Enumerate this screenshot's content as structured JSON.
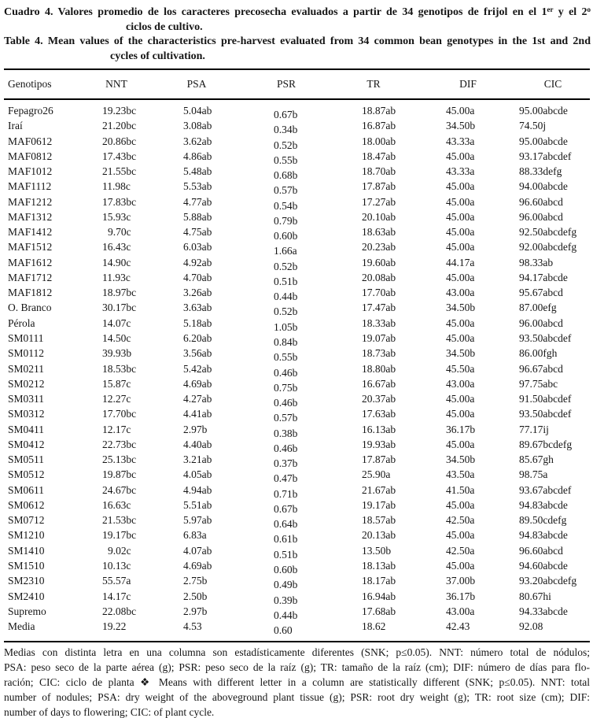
{
  "captions": {
    "es": {
      "label": "Cuadro 4.",
      "line1": "Valores promedio de los caracteres precosecha evaluados a partir de 34 genotipos de frijol en el 1",
      "sup1": "er",
      "mid1": " y el 2",
      "sup2": "o",
      "line2": "ciclos de cultivo."
    },
    "en": {
      "label": "Table 4.",
      "line1": "Mean values of the characteristics pre-harvest evaluated from 34 common bean genotypes in the 1st and 2nd",
      "line2": "cycles of cultivation."
    }
  },
  "table": {
    "columns": [
      "Genotipos",
      "NNT",
      "PSA",
      "PSR",
      "TR",
      "DIF",
      "CIC"
    ],
    "rows": [
      [
        "Fepagro26",
        "19.23bc",
        "5.04ab",
        "0.67b",
        "18.87ab",
        "45.00a",
        "95.00abcde"
      ],
      [
        "Iraí",
        "21.20bc",
        "3.08ab",
        "0.34b",
        "16.87ab",
        "34.50b",
        "74.50j"
      ],
      [
        "MAF0612",
        "20.86bc",
        "3.62ab",
        "0.52b",
        "18.00ab",
        "43.33a",
        "95.00abcde"
      ],
      [
        "MAF0812",
        "17.43bc",
        "4.86ab",
        "0.55b",
        "18.47ab",
        "45.00a",
        "93.17abcdef"
      ],
      [
        "MAF1012",
        "21.55bc",
        "5.48ab",
        "0.68b",
        "18.70ab",
        "43.33a",
        "88.33defg"
      ],
      [
        "MAF1112",
        "11.98c",
        "5.53ab",
        "0.57b",
        "17.87ab",
        "45.00a",
        "94.00abcde"
      ],
      [
        "MAF1212",
        "17.83bc",
        "4.77ab",
        "0.54b",
        "17.27ab",
        "45.00a",
        "96.60abcd"
      ],
      [
        "MAF1312",
        "15.93c",
        "5.88ab",
        "0.79b",
        "20.10ab",
        "45.00a",
        "96.00abcd"
      ],
      [
        "MAF1412",
        "9.70c",
        "4.75ab",
        "0.60b",
        "18.63ab",
        "45.00a",
        "92.50abcdefg"
      ],
      [
        "MAF1512",
        "16.43c",
        "6.03ab",
        "1.66a",
        "20.23ab",
        "45.00a",
        "92.00abcdefg"
      ],
      [
        "MAF1612",
        "14.90c",
        "4.92ab",
        "0.52b",
        "19.60ab",
        "44.17a",
        "98.33ab"
      ],
      [
        "MAF1712",
        "11.93c",
        "4.70ab",
        "0.51b",
        "20.08ab",
        "45.00a",
        "94.17abcde"
      ],
      [
        "MAF1812",
        "18.97bc",
        "3.26ab",
        "0.44b",
        "17.70ab",
        "43.00a",
        "95.67abcd"
      ],
      [
        "O. Branco",
        "30.17bc",
        "3.63ab",
        "0.52b",
        "17.47ab",
        "34.50b",
        "87.00efg"
      ],
      [
        "Pérola",
        "14.07c",
        "5.18ab",
        "1.05b",
        "18.33ab",
        "45.00a",
        "96.00abcd"
      ],
      [
        "SM0111",
        "14.50c",
        "6.20ab",
        "0.84b",
        "19.07ab",
        "45.00a",
        "93.50abcdef"
      ],
      [
        "SM0112",
        "39.93b",
        "3.56ab",
        "0.55b",
        "18.73ab",
        "34.50b",
        "86.00fgh"
      ],
      [
        "SM0211",
        "18.53bc",
        "5.42ab",
        "0.46b",
        "18.80ab",
        "45.50a",
        "96.67abcd"
      ],
      [
        "SM0212",
        "15.87c",
        "4.69ab",
        "0.75b",
        "16.67ab",
        "43.00a",
        "97.75abc"
      ],
      [
        "SM0311",
        "12.27c",
        "4.27ab",
        "0.46b",
        "20.37ab",
        "45.00a",
        "91.50abcdef"
      ],
      [
        "SM0312",
        "17.70bc",
        "4.41ab",
        "0.57b",
        "17.63ab",
        "45.00a",
        "93.50abcdef"
      ],
      [
        "SM0411",
        "12.17c",
        "2.97b",
        "0.38b",
        "16.13ab",
        "36.17b",
        "77.17ij"
      ],
      [
        "SM0412",
        "22.73bc",
        "4.40ab",
        "0.46b",
        "19.93ab",
        "45.00a",
        "89.67bcdefg"
      ],
      [
        "SM0511",
        "25.13bc",
        "3.21ab",
        "0.37b",
        "17.87ab",
        "34.50b",
        "85.67gh"
      ],
      [
        "SM0512",
        "19.87bc",
        "4.05ab",
        "0.47b",
        "25.90a",
        "43.50a",
        "98.75a"
      ],
      [
        "SM0611",
        "24.67bc",
        "4.94ab",
        "0.71b",
        "21.67ab",
        "41.50a",
        "93.67abcdef"
      ],
      [
        "SM0612",
        "16.63c",
        "5.51ab",
        "0.67b",
        "19.17ab",
        "45.00a",
        "94.83abcde"
      ],
      [
        "SM0712",
        "21.53bc",
        "5.97ab",
        "0.64b",
        "18.57ab",
        "42.50a",
        "89.50cdefg"
      ],
      [
        "SM1210",
        "19.17bc",
        "6.83a",
        "0.61b",
        "20.13ab",
        "45.00a",
        "94.83abcde"
      ],
      [
        "SM1410",
        "9.02c",
        "4.07ab",
        "0.51b",
        "13.50b",
        "42.50a",
        "96.60abcd"
      ],
      [
        "SM1510",
        "10.13c",
        "4.69ab",
        "0.60b",
        "18.13ab",
        "45.00a",
        "94.60abcde"
      ],
      [
        "SM2310",
        "55.57a",
        "2.75b",
        "0.49b",
        "18.17ab",
        "37.00b",
        "93.20abcdefg"
      ],
      [
        "SM2410",
        "14.17c",
        "2.50b",
        "0.39b",
        "16.94ab",
        "36.17b",
        "80.67hi"
      ],
      [
        "Supremo",
        "22.08bc",
        "2.97b",
        "0.44b",
        "17.68ab",
        "43.00a",
        "94.33abcde"
      ]
    ],
    "mean_row": [
      "Media",
      "19.22",
      "4.53",
      "0.60",
      "18.62",
      "42.43",
      "92.08"
    ]
  },
  "footnote": {
    "lines": [
      "Medias con distinta letra en una columna son estadísticamente diferentes (SNK; p≤0.05). NNT: número total de nódulos;",
      "PSA: peso seco de la parte aérea (g); PSR: peso seco de la raíz (g); TR: tamaño de la raíz (cm); DIF: número de días para flo-",
      "ración; CIC: ciclo de planta ❖ Means with different letter in a column are statistically different (SNK; p≤0.05). NNT: total",
      "number of nodules; PSA: dry weight of the aboveground plant tissue (g); PSR: root dry weight (g); TR: root size (cm); DIF:",
      "number of days to flowering; CIC: of plant cycle."
    ]
  }
}
